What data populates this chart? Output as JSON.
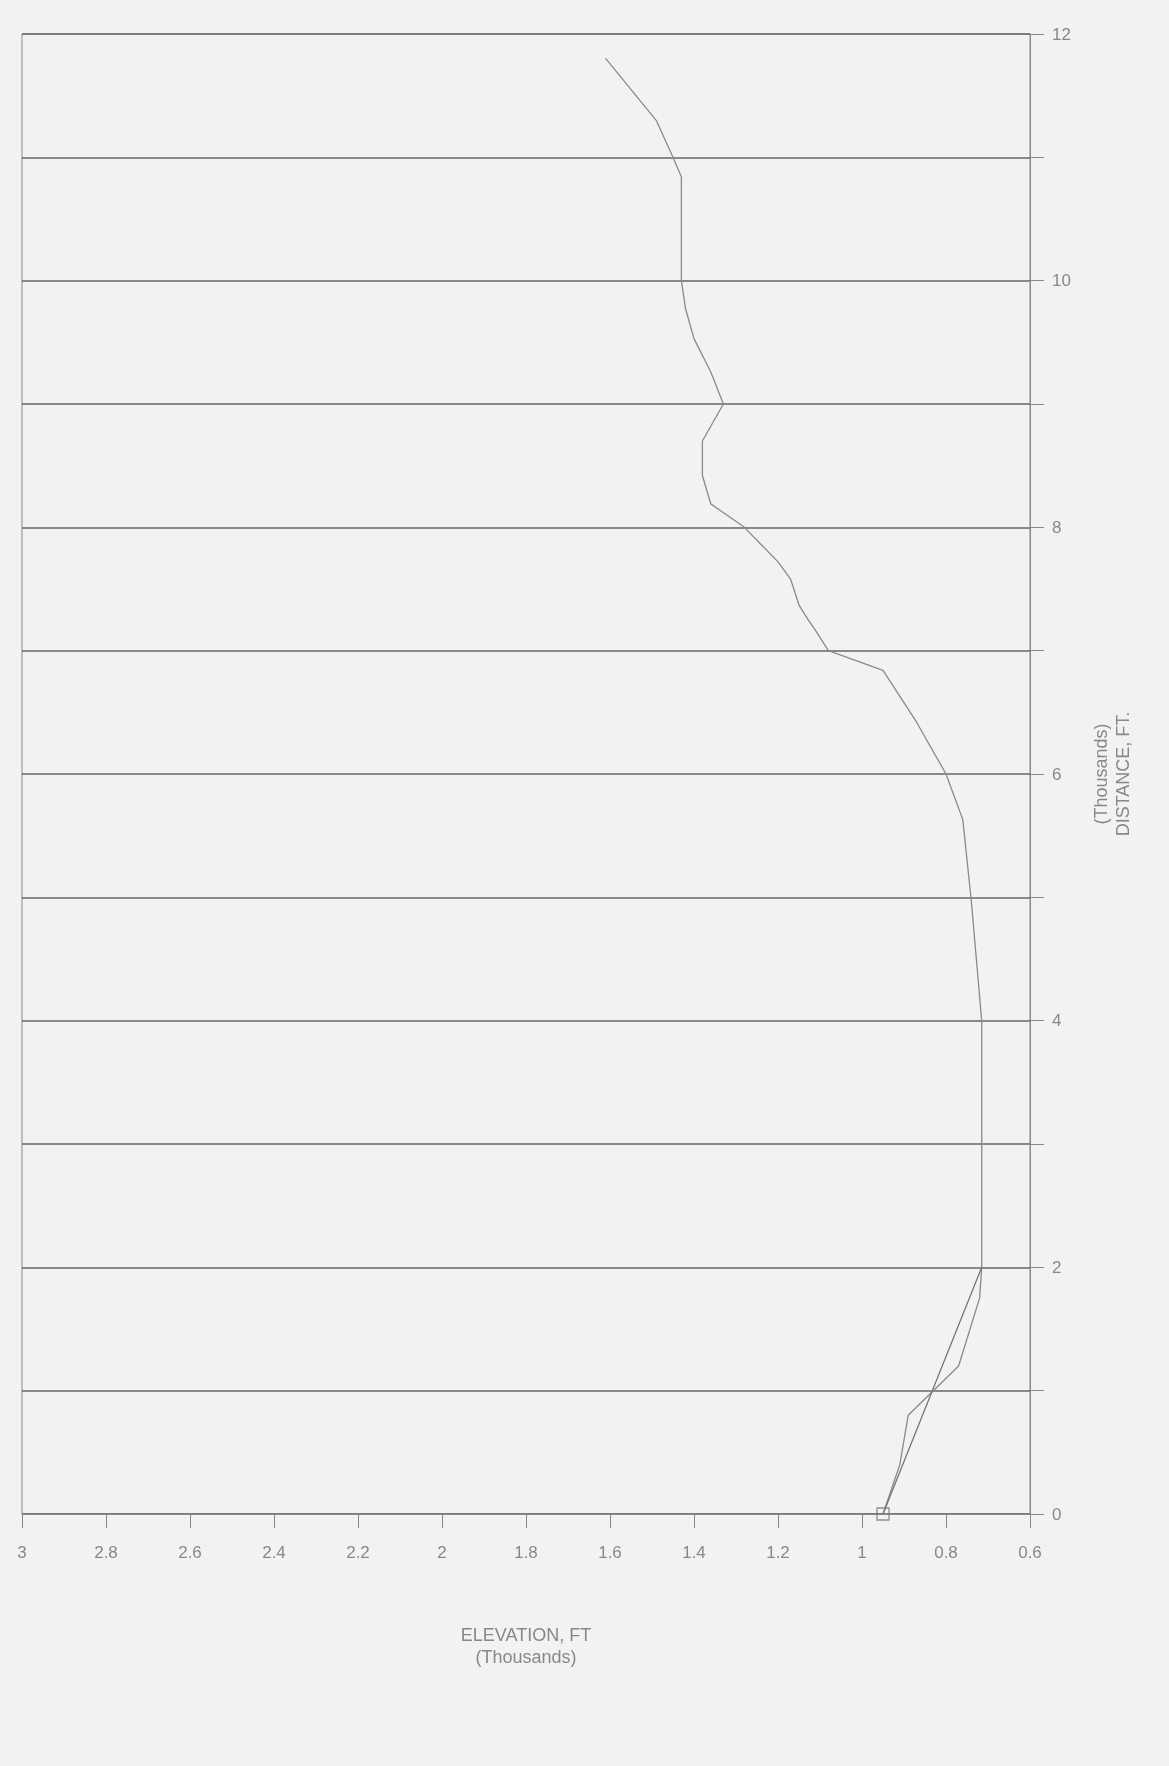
{
  "chart_data": {
    "type": "line",
    "xlabel": "ELEVATION, FT\n(Thousands)",
    "ylabel": "(Thousands)\nDISTANCE, FT.",
    "xlim": [
      3,
      0.6
    ],
    "xticks": [
      3,
      2.8,
      2.6,
      2.4,
      2.2,
      2,
      1.8,
      1.6,
      1.4,
      1.2,
      1,
      0.8,
      0.6
    ],
    "ylim": [
      0,
      12
    ],
    "yticks": [
      0,
      {
        "value": 1,
        "label": null
      },
      2,
      {
        "value": 3,
        "label": null
      },
      4,
      {
        "value": 5,
        "label": null
      },
      6,
      {
        "value": 7,
        "label": null
      },
      8,
      {
        "value": 9,
        "label": null
      },
      10,
      {
        "value": 11,
        "label": null
      },
      12
    ],
    "grid": "y",
    "series": [
      {
        "color": "#8a8a8a",
        "x": [
          0.95,
          0.91,
          0.89,
          0.77,
          0.72,
          0.715,
          0.715,
          0.715,
          0.74,
          0.76,
          0.8,
          0.87,
          0.95,
          1.08,
          1.11,
          1.13,
          1.15,
          1.17,
          1.2,
          1.28,
          1.36,
          1.38,
          1.38,
          1.35,
          1.33,
          1.36,
          1.4,
          1.42,
          1.43,
          1.43,
          1.43,
          1.45,
          1.49,
          1.61
        ],
        "values": [
          0,
          0.4,
          0.8,
          1.2,
          1.75,
          2,
          3,
          4,
          4.98,
          5.63,
          6,
          6.42,
          6.84,
          7,
          7.16,
          7.26,
          7.37,
          7.58,
          7.72,
          8,
          8.19,
          8.42,
          8.7,
          8.88,
          9,
          9.26,
          9.53,
          9.77,
          10,
          10.47,
          10.84,
          11,
          11.3,
          11.8
        ]
      },
      {
        "color": "#777777",
        "x": [
          0.95,
          0.715
        ],
        "values": [
          0,
          2
        ]
      },
      {
        "type": "scatter",
        "color": "#777777",
        "marker": "square",
        "x": [
          0.95
        ],
        "values": [
          0
        ]
      }
    ]
  }
}
